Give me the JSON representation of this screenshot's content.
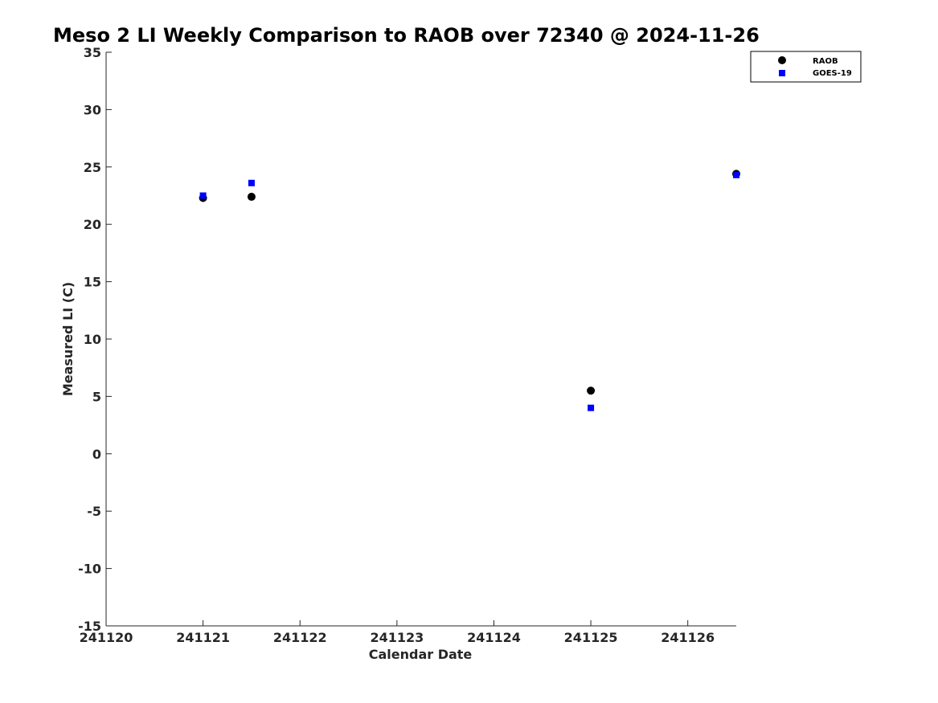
{
  "chart_data": {
    "type": "scatter",
    "title": "Meso 2 LI Weekly Comparison to RAOB over 72340 @ 2024-11-26",
    "xlabel": "Calendar Date",
    "ylabel": "Measured LI (C)",
    "xlim": [
      241120,
      241126.5
    ],
    "ylim": [
      -15,
      35
    ],
    "xticks": [
      "241120",
      "241121",
      "241122",
      "241123",
      "241124",
      "241125",
      "241126"
    ],
    "yticks": [
      "35",
      "30",
      "25",
      "20",
      "15",
      "10",
      "5",
      "0",
      "-5",
      "-10",
      "-15"
    ],
    "grid": false,
    "legend_position": "top-right",
    "series": [
      {
        "name": "RAOB",
        "marker": "circle",
        "color": "#000000",
        "x": [
          241121,
          241121.5,
          241125,
          241126.5
        ],
        "y": [
          22.3,
          22.4,
          5.5,
          24.4
        ]
      },
      {
        "name": "GOES-19",
        "marker": "square",
        "color": "#0000ff",
        "x": [
          241121,
          241121.5,
          241125,
          241126.5
        ],
        "y": [
          22.5,
          23.6,
          4.0,
          24.3
        ]
      }
    ]
  }
}
